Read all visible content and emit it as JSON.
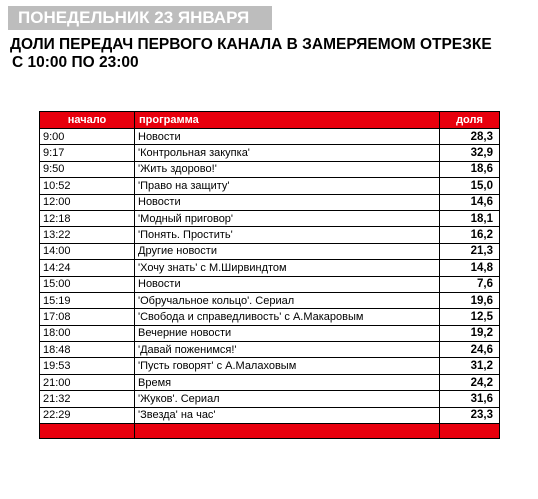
{
  "banner": {
    "day": "ПОНЕДЕЛЬНИК 23 ЯНВАРЯ"
  },
  "heading": {
    "line1": "ДОЛИ ПЕРЕДАЧ ПЕРВОГО КАНАЛА В ЗАМЕРЯЕМОМ ОТРЕЗКЕ",
    "line2": "С 10:00 ПО 23:00"
  },
  "table": {
    "columns": {
      "time": "начало",
      "program": "программа",
      "share": "доля"
    },
    "rows": [
      {
        "time": "9:00",
        "program": "Новости",
        "share": "28,3"
      },
      {
        "time": "9:17",
        "program": "'Контрольная закупка'",
        "share": "32,9"
      },
      {
        "time": "9:50",
        "program": "'Жить здорово!'",
        "share": "18,6"
      },
      {
        "time": "10:52",
        "program": "'Право на защиту'",
        "share": "15,0"
      },
      {
        "time": "12:00",
        "program": "Новости",
        "share": "14,6"
      },
      {
        "time": "12:18",
        "program": "'Модный приговор'",
        "share": "18,1"
      },
      {
        "time": "13:22",
        "program": "'Понять. Простить'",
        "share": "16,2"
      },
      {
        "time": "14:00",
        "program": "Другие новости",
        "share": "21,3"
      },
      {
        "time": "14:24",
        "program": "'Хочу знать' с М.Ширвиндтом",
        "share": "14,8"
      },
      {
        "time": "15:00",
        "program": "Новости",
        "share": "7,6"
      },
      {
        "time": "15:19",
        "program": "'Обручальное кольцо'. Сериал",
        "share": "19,6"
      },
      {
        "time": "17:08",
        "program": "'Свобода и справедливость' с А.Макаровым",
        "share": "12,5"
      },
      {
        "time": "18:00",
        "program": "Вечерние новости",
        "share": "19,2"
      },
      {
        "time": "18:48",
        "program": "'Давай поженимся!'",
        "share": "24,6"
      },
      {
        "time": "19:53",
        "program": "'Пусть говорят' с А.Малаховым",
        "share": "31,2"
      },
      {
        "time": "21:00",
        "program": "Время",
        "share": "24,2"
      },
      {
        "time": "21:32",
        "program": "'Жуков'. Сериал",
        "share": "31,6"
      },
      {
        "time": "22:29",
        "program": "'Звезда' на час'",
        "share": "23,3"
      }
    ]
  },
  "colors": {
    "header_red": "#e8000d",
    "banner_gray": "#bdbdbd"
  }
}
